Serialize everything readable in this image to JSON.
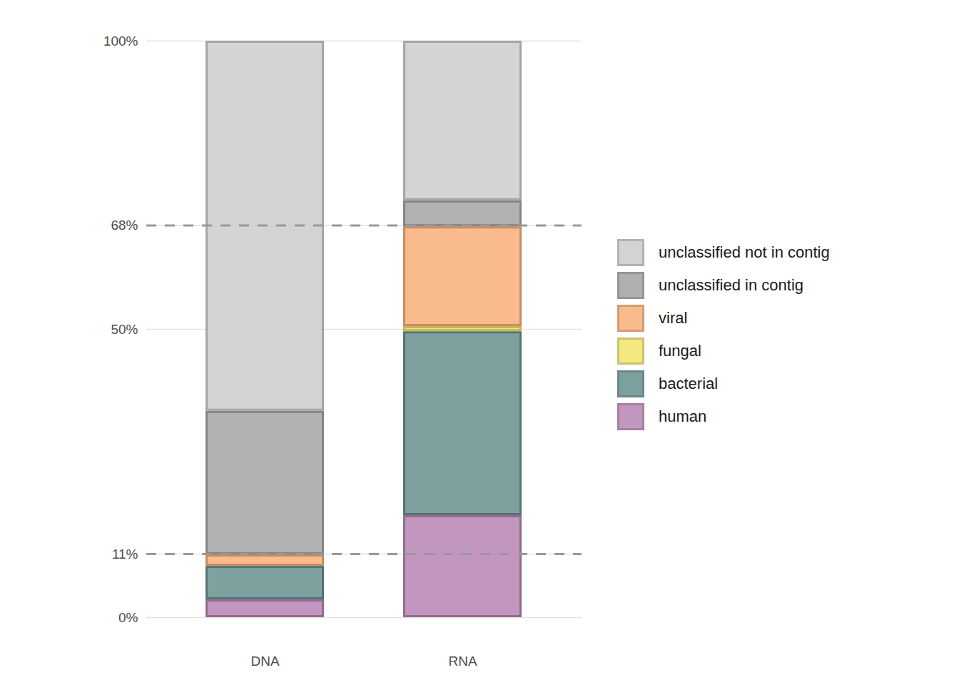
{
  "chart_data": {
    "type": "bar",
    "stacked": true,
    "categories": [
      "DNA",
      "RNA"
    ],
    "series": [
      {
        "name": "human",
        "color": "#b784b4",
        "values": [
          3.1,
          17.7
        ]
      },
      {
        "name": "bacterial",
        "color": "#67908e",
        "values": [
          5.8,
          31.9
        ]
      },
      {
        "name": "fungal",
        "color": "#f3e36a",
        "values": [
          0,
          0.9
        ]
      },
      {
        "name": "viral",
        "color": "#f8ae78",
        "values": [
          2.0,
          17.3
        ]
      },
      {
        "name": "unclassified in contig",
        "color": "#a3a3a3",
        "values": [
          24.9,
          4.5
        ]
      },
      {
        "name": "unclassified not in contig",
        "color": "#cccccc",
        "values": [
          64.2,
          27.7
        ]
      }
    ],
    "ylim": [
      0,
      100
    ],
    "yticks": [
      {
        "value": 0,
        "label": "0%"
      },
      {
        "value": 11,
        "label": "11%"
      },
      {
        "value": 50,
        "label": "50%"
      },
      {
        "value": 68,
        "label": "68%"
      },
      {
        "value": 100,
        "label": "100%"
      }
    ],
    "reference_lines": [
      11,
      68
    ],
    "grid": true,
    "legend": "right"
  }
}
